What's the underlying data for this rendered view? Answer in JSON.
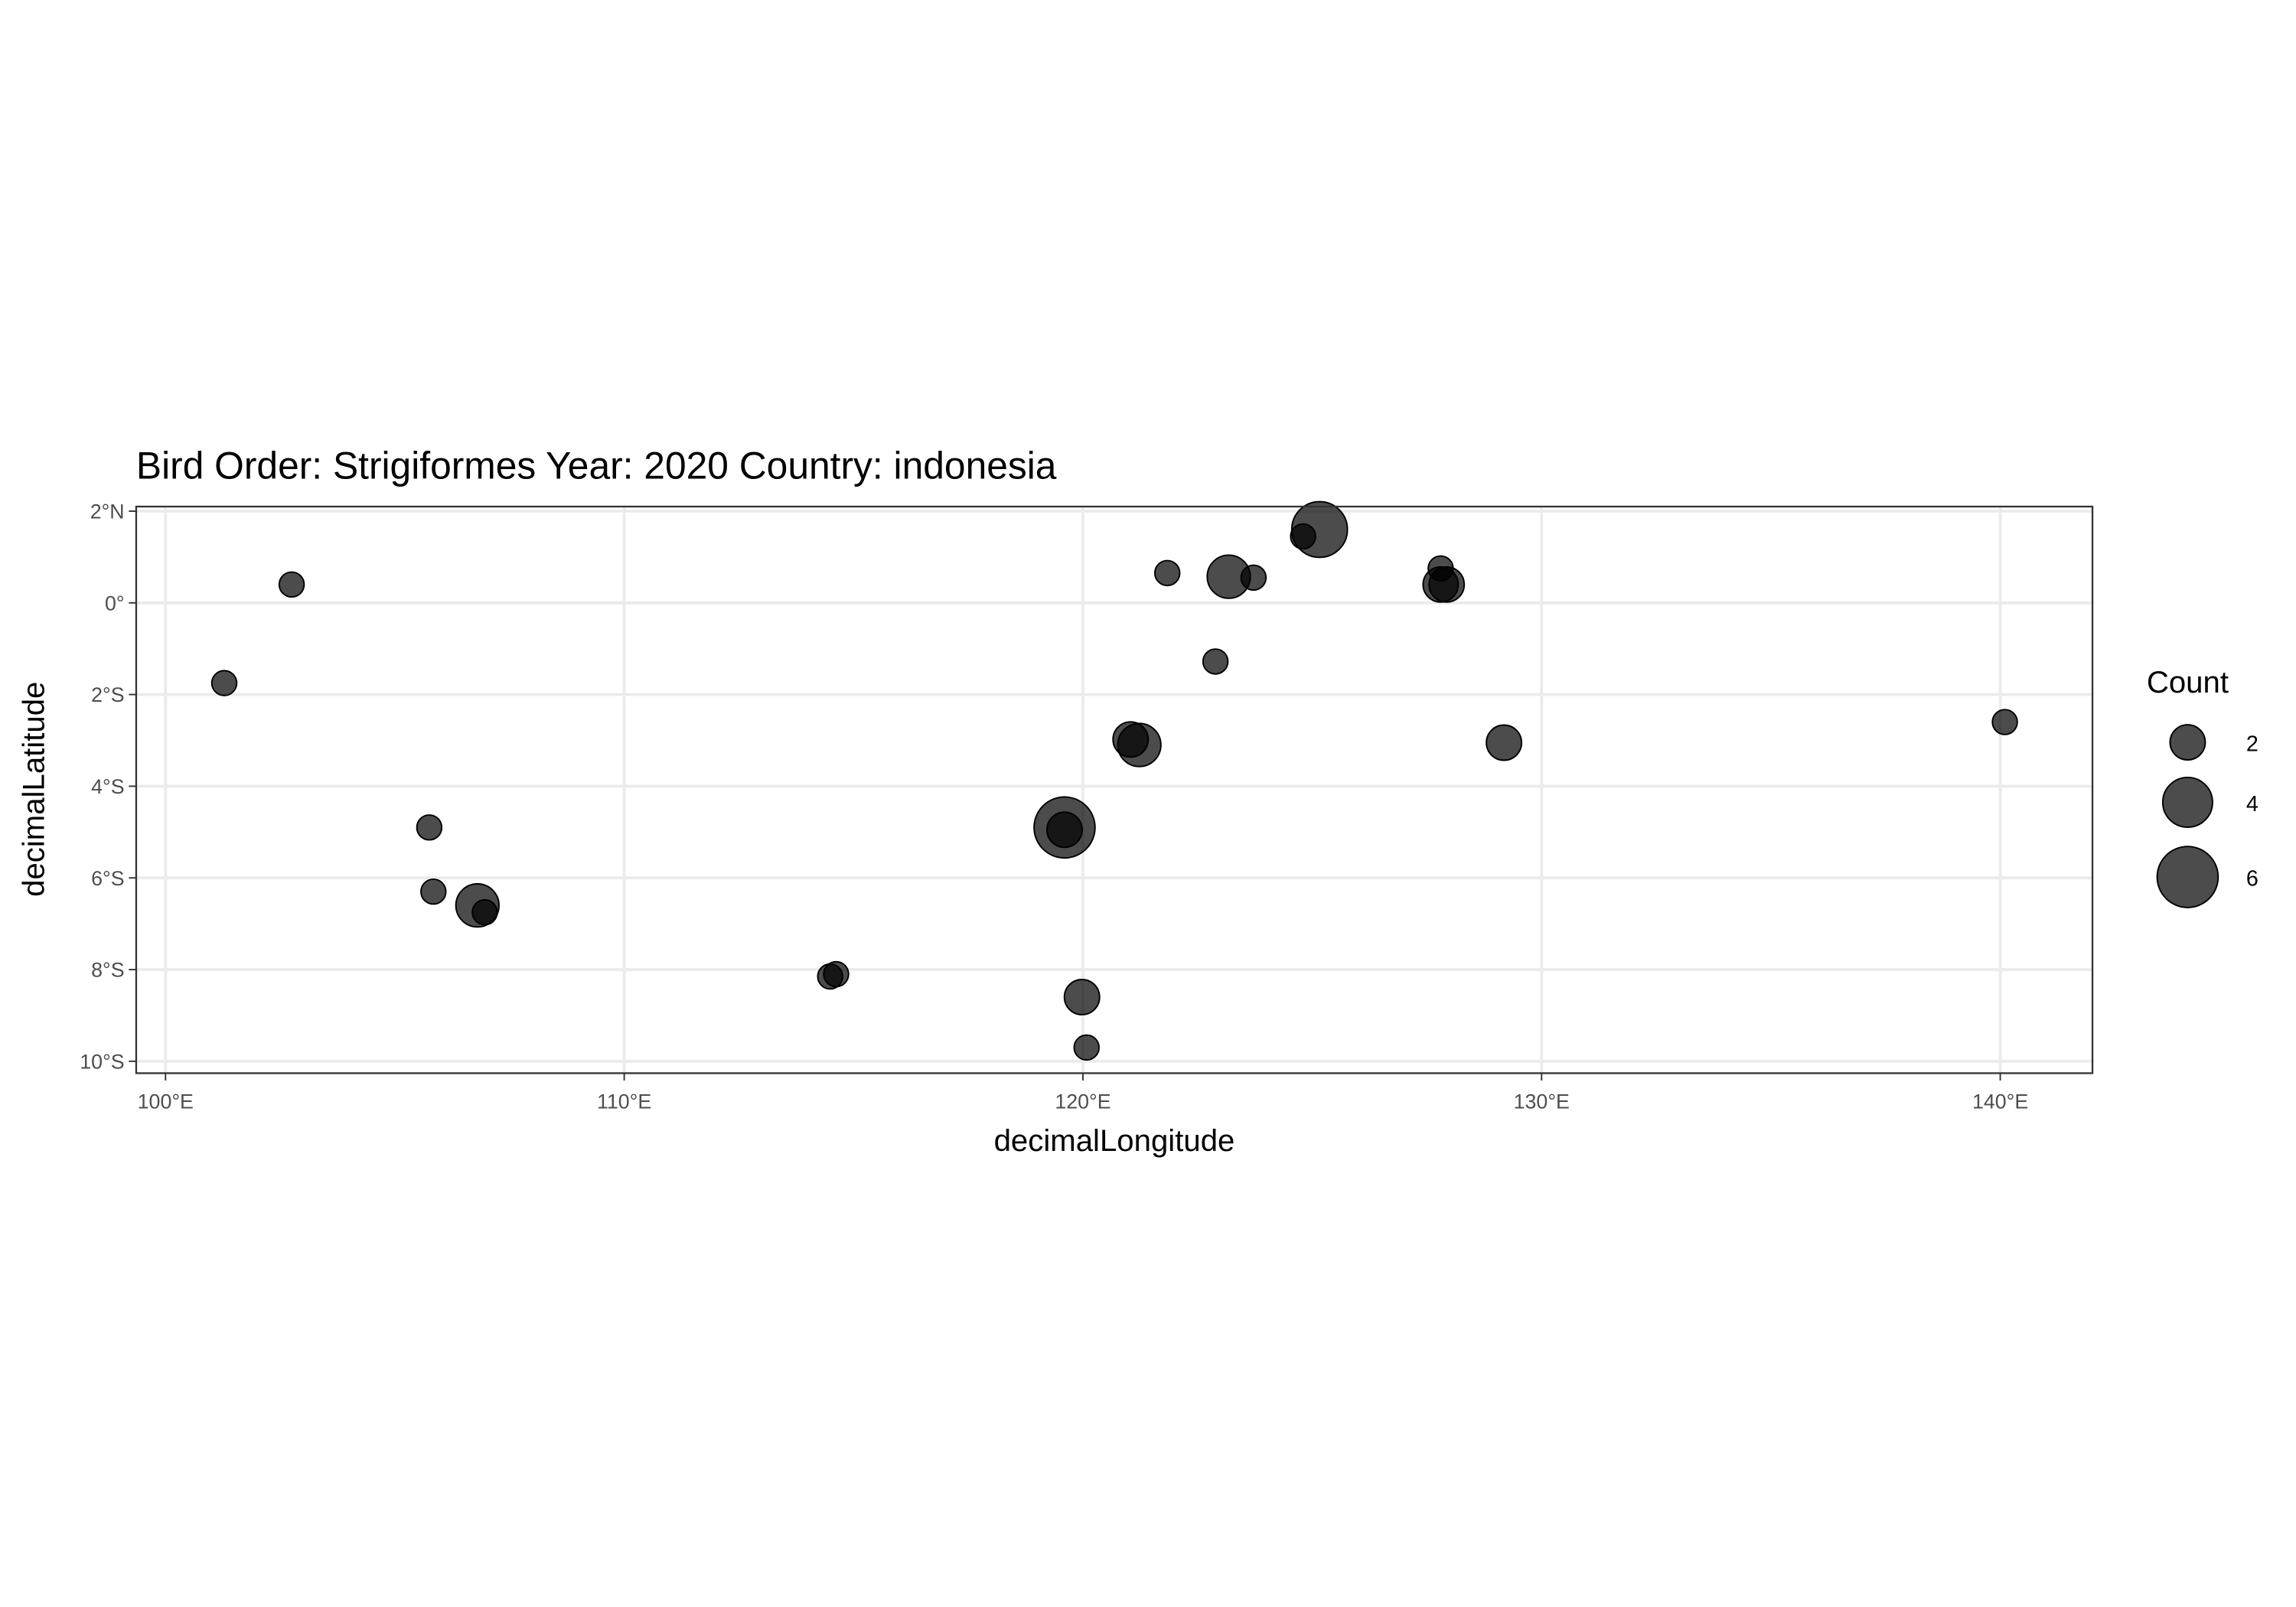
{
  "chart_data": {
    "type": "scatter",
    "title": "Bird Order: Strigiformes Year: 2020 Country: indonesia",
    "x_label": "decimalLongitude",
    "y_label": "decimalLatitude",
    "x": [
      102.75,
      101.28,
      105.75,
      105.84,
      106.8,
      106.96,
      114.49,
      114.62,
      119.6,
      119.6,
      119.98,
      120.08,
      121.04,
      121.23,
      121.84,
      122.89,
      123.18,
      123.72,
      124.8,
      125.16,
      127.8,
      127.8,
      127.93,
      129.18,
      140.1
    ],
    "y": [
      0.4,
      -1.75,
      -4.9,
      -6.3,
      -6.6,
      -6.75,
      -8.15,
      -8.1,
      -4.9,
      -4.95,
      -8.6,
      -9.7,
      -2.98,
      -3.1,
      0.65,
      -1.28,
      0.57,
      0.55,
      1.45,
      1.6,
      0.75,
      0.4,
      0.4,
      -3.05,
      -2.6
    ],
    "sizes": [
      1,
      1,
      1,
      1,
      3,
      1,
      1,
      1,
      6,
      2,
      2,
      1,
      2,
      3,
      1,
      1,
      3,
      1,
      1,
      5,
      1,
      2,
      2,
      2,
      1
    ],
    "color": "#000000",
    "alpha": 0.7,
    "size_legend": {
      "title": "Count",
      "values": [
        2,
        4,
        6
      ]
    },
    "xlim": [
      99.36,
      142.01
    ],
    "ylim": [
      -10.26,
      2.1
    ],
    "xticks": [
      {
        "value": 100,
        "label": "100°E"
      },
      {
        "value": 110,
        "label": "110°E"
      },
      {
        "value": 120,
        "label": "120°E"
      },
      {
        "value": 130,
        "label": "130°E"
      },
      {
        "value": 140,
        "label": "140°E"
      }
    ],
    "yticks": [
      {
        "value": 2,
        "label": "2°N"
      },
      {
        "value": 0,
        "label": "0°"
      },
      {
        "value": -2,
        "label": "2°S"
      },
      {
        "value": -4,
        "label": "4°S"
      },
      {
        "value": -6,
        "label": "6°S"
      },
      {
        "value": -8,
        "label": "8°S"
      },
      {
        "value": -10,
        "label": "10°S"
      }
    ],
    "grid": true
  }
}
